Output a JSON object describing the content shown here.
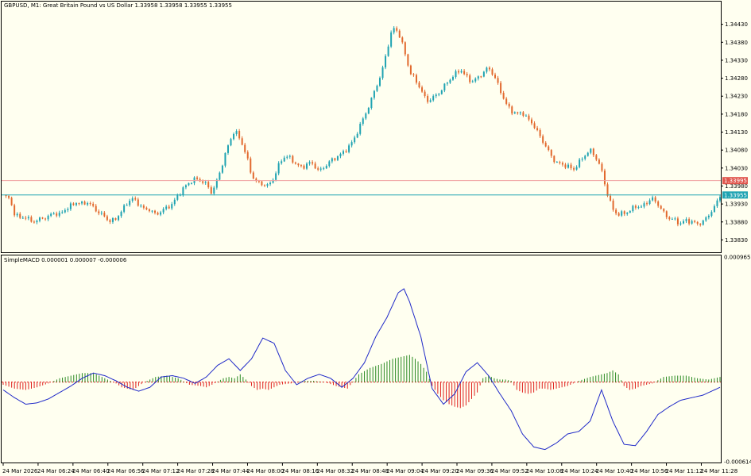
{
  "symbol_header": "GBPUSD, M1:  Great Britain Pound vs US Dollar  1.33958 1.33958 1.33955 1.33955",
  "indicator_header": "SimpleMACD 0.000001 0.000007 -0.000006",
  "colors": {
    "background": "#fffff0",
    "bull_candle": "#1fa3b2",
    "bear_candle": "#e2692e",
    "bid_line": "#1fa3b2",
    "ask_line": "#f0a0a0",
    "histogram_positive": "#2a8a22",
    "histogram_negative": "#e0211d",
    "signal_line": "#1f29c8"
  },
  "price_tags": {
    "ask": "1.33995",
    "bid": "1.33955"
  },
  "chart_data": [
    {
      "type": "candlestick",
      "title": "GBPUSD, M1:  Great Britain Pound vs US Dollar",
      "ylim": [
        1.338,
        1.3448
      ],
      "y_ticks": [
        "1.34430",
        "1.34380",
        "1.34330",
        "1.34280",
        "1.34230",
        "1.34180",
        "1.34130",
        "1.34080",
        "1.34030",
        "1.33980",
        "1.33930",
        "1.33880",
        "1.33830"
      ],
      "ask_level": 1.33995,
      "bid_level": 1.33955,
      "close_path": [
        [
          0,
          1.33955
        ],
        [
          6,
          1.33945
        ],
        [
          12,
          1.33905
        ],
        [
          18,
          1.3389
        ],
        [
          24,
          1.33895
        ],
        [
          30,
          1.3388
        ],
        [
          36,
          1.33885
        ],
        [
          42,
          1.3389
        ],
        [
          48,
          1.33895
        ],
        [
          54,
          1.33905
        ],
        [
          60,
          1.339
        ],
        [
          66,
          1.33915
        ],
        [
          72,
          1.33925
        ],
        [
          78,
          1.33935
        ],
        [
          84,
          1.3393
        ],
        [
          90,
          1.33935
        ],
        [
          96,
          1.3392
        ],
        [
          102,
          1.33905
        ],
        [
          108,
          1.33895
        ],
        [
          114,
          1.3388
        ],
        [
          120,
          1.3389
        ],
        [
          126,
          1.3391
        ],
        [
          132,
          1.33935
        ],
        [
          138,
          1.33945
        ],
        [
          144,
          1.3393
        ],
        [
          150,
          1.33915
        ],
        [
          156,
          1.33915
        ],
        [
          162,
          1.339
        ],
        [
          168,
          1.3391
        ],
        [
          174,
          1.3392
        ],
        [
          180,
          1.3393
        ],
        [
          186,
          1.33955
        ],
        [
          192,
          1.33975
        ],
        [
          198,
          1.3399
        ],
        [
          204,
          1.34
        ],
        [
          210,
          1.33995
        ],
        [
          216,
          1.33985
        ],
        [
          222,
          1.3396
        ],
        [
          228,
          1.34
        ],
        [
          234,
          1.3405
        ],
        [
          240,
          1.341
        ],
        [
          246,
          1.34135
        ],
        [
          252,
          1.3411
        ],
        [
          258,
          1.3407
        ],
        [
          264,
          1.3401
        ],
        [
          270,
          1.3399
        ],
        [
          276,
          1.33985
        ],
        [
          282,
          1.3398
        ],
        [
          288,
          1.34005
        ],
        [
          294,
          1.34045
        ],
        [
          300,
          1.34065
        ],
        [
          306,
          1.34055
        ],
        [
          312,
          1.3404
        ],
        [
          318,
          1.3403
        ],
        [
          324,
          1.34045
        ],
        [
          330,
          1.3404
        ],
        [
          336,
          1.3402
        ],
        [
          342,
          1.34035
        ],
        [
          348,
          1.3405
        ],
        [
          354,
          1.3406
        ],
        [
          360,
          1.3407
        ],
        [
          366,
          1.34085
        ],
        [
          372,
          1.34105
        ],
        [
          378,
          1.3414
        ],
        [
          384,
          1.34175
        ],
        [
          390,
          1.3421
        ],
        [
          396,
          1.34255
        ],
        [
          402,
          1.3429
        ],
        [
          408,
          1.3436
        ],
        [
          414,
          1.3442
        ],
        [
          420,
          1.3441
        ],
        [
          426,
          1.3436
        ],
        [
          432,
          1.343
        ],
        [
          438,
          1.34275
        ],
        [
          444,
          1.3425
        ],
        [
          450,
          1.34215
        ],
        [
          456,
          1.34225
        ],
        [
          462,
          1.34235
        ],
        [
          468,
          1.34255
        ],
        [
          474,
          1.34275
        ],
        [
          480,
          1.3429
        ],
        [
          486,
          1.34305
        ],
        [
          492,
          1.34285
        ],
        [
          498,
          1.3427
        ],
        [
          504,
          1.3428
        ],
        [
          510,
          1.34295
        ],
        [
          516,
          1.3431
        ],
        [
          522,
          1.34285
        ],
        [
          528,
          1.3425
        ],
        [
          534,
          1.3421
        ],
        [
          540,
          1.3419
        ],
        [
          546,
          1.3418
        ],
        [
          552,
          1.34185
        ],
        [
          558,
          1.34165
        ],
        [
          564,
          1.3415
        ],
        [
          570,
          1.3412
        ],
        [
          576,
          1.34095
        ],
        [
          582,
          1.34065
        ],
        [
          588,
          1.34045
        ],
        [
          594,
          1.3404
        ],
        [
          600,
          1.34035
        ],
        [
          606,
          1.34025
        ],
        [
          612,
          1.34045
        ],
        [
          618,
          1.34065
        ],
        [
          624,
          1.3408
        ],
        [
          630,
          1.3406
        ],
        [
          636,
          1.34025
        ],
        [
          642,
          1.3396
        ],
        [
          648,
          1.33915
        ],
        [
          654,
          1.339
        ],
        [
          660,
          1.33905
        ],
        [
          666,
          1.3391
        ],
        [
          672,
          1.33925
        ],
        [
          678,
          1.3392
        ],
        [
          684,
          1.33935
        ],
        [
          690,
          1.33945
        ],
        [
          696,
          1.3393
        ],
        [
          702,
          1.33905
        ],
        [
          708,
          1.3389
        ],
        [
          714,
          1.33885
        ],
        [
          720,
          1.33875
        ],
        [
          726,
          1.33885
        ],
        [
          732,
          1.3388
        ],
        [
          738,
          1.33875
        ],
        [
          744,
          1.3388
        ],
        [
          750,
          1.339
        ],
        [
          756,
          1.3392
        ],
        [
          762,
          1.33955
        ]
      ]
    },
    {
      "type": "bar",
      "title": "SimpleMACD",
      "ylim": [
        -0.000614,
        0.000965
      ],
      "y_ticks": [
        "0.000965",
        "-0.000614"
      ],
      "series": [
        {
          "name": "histogram",
          "points": [
            [
              0,
              -2e-05
            ],
            [
              12,
              -5e-05
            ],
            [
              24,
              -6e-05
            ],
            [
              36,
              -4e-05
            ],
            [
              48,
              -1e-05
            ],
            [
              60,
              3e-05
            ],
            [
              72,
              5e-05
            ],
            [
              84,
              7e-05
            ],
            [
              96,
              7e-05
            ],
            [
              108,
              3e-05
            ],
            [
              120,
              -1e-05
            ],
            [
              126,
              -4e-05
            ],
            [
              132,
              -5e-05
            ],
            [
              138,
              -6e-05
            ],
            [
              144,
              -3e-05
            ],
            [
              150,
              0.0
            ],
            [
              162,
              4e-05
            ],
            [
              174,
              5e-05
            ],
            [
              186,
              3e-05
            ],
            [
              198,
              -2e-05
            ],
            [
              210,
              -3e-05
            ],
            [
              216,
              -4e-05
            ],
            [
              222,
              -2e-05
            ],
            [
              234,
              3e-05
            ],
            [
              240,
              4e-05
            ],
            [
              246,
              3e-05
            ],
            [
              252,
              6e-05
            ],
            [
              258,
              2e-05
            ],
            [
              264,
              -3e-05
            ],
            [
              270,
              -6e-05
            ],
            [
              276,
              -5e-05
            ],
            [
              282,
              -6e-05
            ],
            [
              288,
              -4e-05
            ],
            [
              294,
              -2e-05
            ],
            [
              306,
              -1e-05
            ],
            [
              318,
              1e-05
            ],
            [
              330,
              1e-05
            ],
            [
              342,
              0.0
            ],
            [
              354,
              -3e-05
            ],
            [
              366,
              -5e-05
            ],
            [
              378,
              6e-05
            ],
            [
              390,
              0.00011
            ],
            [
              402,
              0.00014
            ],
            [
              414,
              0.00018
            ],
            [
              426,
              0.0002
            ],
            [
              432,
              0.00021
            ],
            [
              438,
              0.00018
            ],
            [
              444,
              0.00014
            ],
            [
              450,
              8e-05
            ],
            [
              456,
              -3e-05
            ],
            [
              462,
              -9e-05
            ],
            [
              468,
              -0.00014
            ],
            [
              474,
              -0.00017
            ],
            [
              480,
              -0.00019
            ],
            [
              486,
              -0.0002
            ],
            [
              492,
              -0.00018
            ],
            [
              498,
              -0.00013
            ],
            [
              504,
              -8e-05
            ],
            [
              510,
              3e-05
            ],
            [
              516,
              5e-05
            ],
            [
              522,
              3e-05
            ],
            [
              528,
              2e-05
            ],
            [
              534,
              2e-05
            ],
            [
              540,
              1e-05
            ],
            [
              546,
              -6e-05
            ],
            [
              552,
              -8e-05
            ],
            [
              558,
              -9e-05
            ],
            [
              564,
              -8e-05
            ],
            [
              570,
              -5e-05
            ],
            [
              576,
              -5e-05
            ],
            [
              582,
              -6e-05
            ],
            [
              588,
              -5e-05
            ],
            [
              594,
              -4e-05
            ],
            [
              600,
              -3e-05
            ],
            [
              612,
              1e-05
            ],
            [
              624,
              4e-05
            ],
            [
              636,
              6e-05
            ],
            [
              642,
              7e-05
            ],
            [
              648,
              9e-05
            ],
            [
              654,
              6e-05
            ],
            [
              660,
              -3e-05
            ],
            [
              666,
              -6e-05
            ],
            [
              672,
              -5e-05
            ],
            [
              678,
              -3e-05
            ],
            [
              690,
              -1e-05
            ],
            [
              702,
              4e-05
            ],
            [
              714,
              5e-05
            ],
            [
              726,
              5e-05
            ],
            [
              738,
              3e-05
            ],
            [
              750,
              2e-05
            ],
            [
              762,
              4e-05
            ]
          ]
        },
        {
          "name": "signal",
          "points": [
            [
              0,
              -6e-05
            ],
            [
              12,
              -0.00012
            ],
            [
              24,
              -0.00017
            ],
            [
              36,
              -0.00016
            ],
            [
              48,
              -0.00013
            ],
            [
              60,
              -8e-05
            ],
            [
              72,
              -3e-05
            ],
            [
              84,
              3e-05
            ],
            [
              96,
              7e-05
            ],
            [
              108,
              5e-05
            ],
            [
              120,
              1e-05
            ],
            [
              132,
              -4e-05
            ],
            [
              144,
              -7e-05
            ],
            [
              156,
              -4e-05
            ],
            [
              168,
              4e-05
            ],
            [
              180,
              5e-05
            ],
            [
              192,
              3e-05
            ],
            [
              204,
              -1e-05
            ],
            [
              216,
              4e-05
            ],
            [
              228,
              0.00013
            ],
            [
              240,
              0.00018
            ],
            [
              252,
              9e-05
            ],
            [
              264,
              0.00018
            ],
            [
              276,
              0.00034
            ],
            [
              288,
              0.0003
            ],
            [
              300,
              9e-05
            ],
            [
              312,
              -2e-05
            ],
            [
              324,
              3e-05
            ],
            [
              336,
              6e-05
            ],
            [
              348,
              3e-05
            ],
            [
              360,
              -4e-05
            ],
            [
              372,
              3e-05
            ],
            [
              384,
              0.00015
            ],
            [
              396,
              0.00035
            ],
            [
              408,
              0.0005
            ],
            [
              420,
              0.00069
            ],
            [
              426,
              0.00072
            ],
            [
              432,
              0.00062
            ],
            [
              444,
              0.00035
            ],
            [
              456,
              -5e-05
            ],
            [
              468,
              -0.00017
            ],
            [
              480,
              -9e-05
            ],
            [
              492,
              8e-05
            ],
            [
              504,
              0.00015
            ],
            [
              516,
              5e-05
            ],
            [
              528,
              -9e-05
            ],
            [
              540,
              -0.00022
            ],
            [
              552,
              -0.0004
            ],
            [
              564,
              -0.0005
            ],
            [
              576,
              -0.00052
            ],
            [
              588,
              -0.00047
            ],
            [
              600,
              -0.0004
            ],
            [
              612,
              -0.00038
            ],
            [
              624,
              -0.0003
            ],
            [
              636,
              -6e-05
            ],
            [
              648,
              -0.0003
            ],
            [
              660,
              -0.00048
            ],
            [
              672,
              -0.00049
            ],
            [
              684,
              -0.00038
            ],
            [
              696,
              -0.00025
            ],
            [
              708,
              -0.00019
            ],
            [
              720,
              -0.00014
            ],
            [
              732,
              -0.00012
            ],
            [
              744,
              -0.0001
            ],
            [
              756,
              -6e-05
            ],
            [
              762,
              -4e-05
            ]
          ]
        }
      ]
    }
  ],
  "x_ticks": [
    "24 Mar 2026",
    "24 Mar 06:24",
    "24 Mar 06:40",
    "24 Mar 06:56",
    "24 Mar 07:12",
    "24 Mar 07:28",
    "24 Mar 07:44",
    "24 Mar 08:00",
    "24 Mar 08:16",
    "24 Mar 08:32",
    "24 Mar 08:48",
    "24 Mar 09:04",
    "24 Mar 09:20",
    "24 Mar 09:36",
    "24 Mar 09:52",
    "24 Mar 10:08",
    "24 Mar 10:24",
    "24 Mar 10:40",
    "24 Mar 10:56",
    "24 Mar 11:12",
    "24 Mar 11:28"
  ]
}
